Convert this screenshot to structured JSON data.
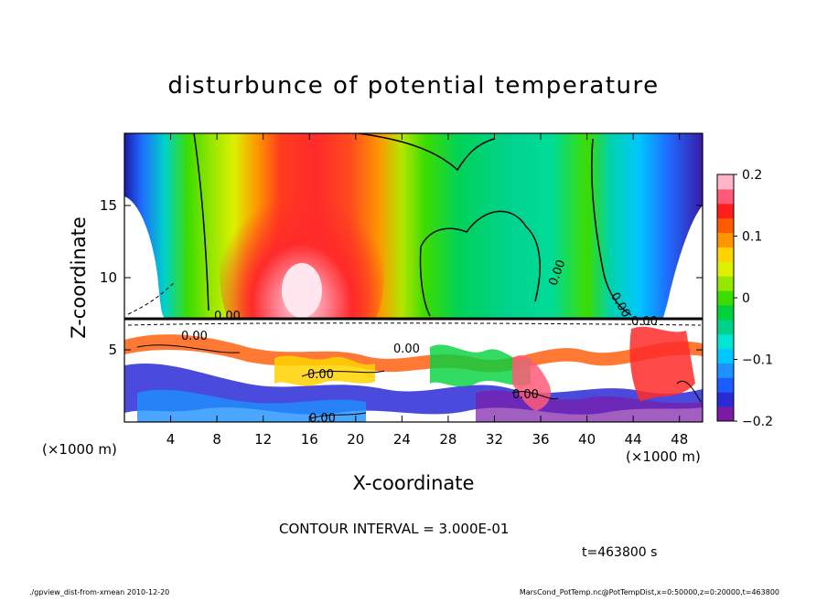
{
  "chart_data": {
    "type": "heatmap",
    "title": "disturbunce of potential temperature",
    "xlabel": "X-coordinate",
    "ylabel": "Z-coordinate",
    "x_unit_left": "(×1000 m)",
    "x_unit_right": "(×1000 m)",
    "xlim": [
      0,
      50
    ],
    "ylim": [
      0,
      20
    ],
    "x_ticks": [
      4,
      8,
      12,
      16,
      20,
      24,
      28,
      32,
      36,
      40,
      44,
      48
    ],
    "y_ticks": [
      5,
      10,
      15
    ],
    "colorbar": {
      "range": [
        -0.2,
        0.2
      ],
      "tick_values": [
        -0.2,
        -0.1,
        0,
        0.1,
        0.2
      ],
      "tick_labels": [
        "−0.2",
        "−0.1",
        "0",
        "0.1",
        "0.2"
      ],
      "colors": [
        "#7a1aa6",
        "#2a2ad6",
        "#1a5cff",
        "#1e90ff",
        "#00c8ff",
        "#00e6d2",
        "#00d28c",
        "#00d23c",
        "#3cdc00",
        "#96e600",
        "#dcf000",
        "#ffd200",
        "#ff9600",
        "#ff5a00",
        "#ff1e1e",
        "#ff5a78",
        "#ffb4c8"
      ]
    },
    "contour_interval_text": "CONTOUR INTERVAL = 3.000E-01",
    "contour_labels": [
      "0.00",
      "0.00",
      "0.00",
      "0.00",
      "0.00",
      "0.00",
      "0.00",
      "0.00",
      "0.00"
    ],
    "time_text": "t=463800 s"
  },
  "footer": {
    "left": "./gpview_dist-from-xmean 2010-12-20",
    "right": "MarsCond_PotTemp.nc@PotTempDist,x=0:50000,z=0:20000,t=463800"
  }
}
